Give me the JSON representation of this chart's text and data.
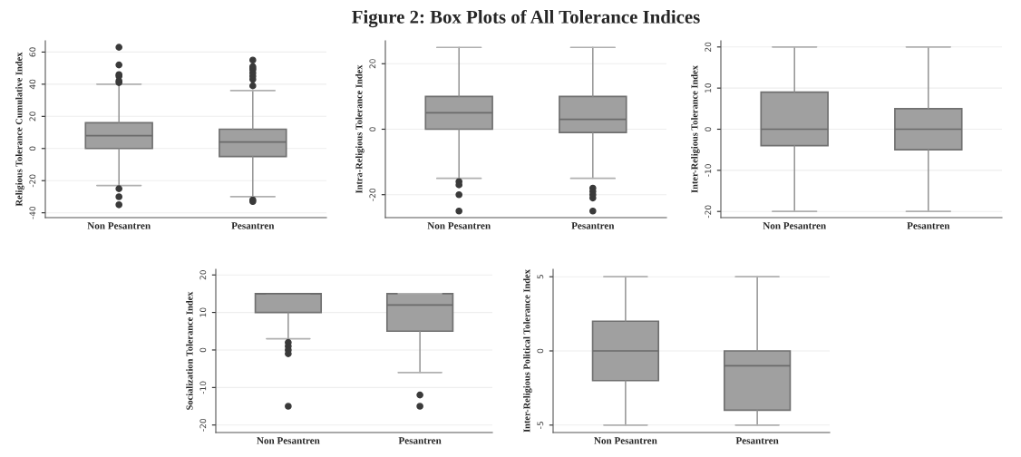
{
  "chart_data": [
    {
      "type": "box",
      "ylabel": "Religious Tolerance Cumulative Index",
      "categories": [
        "Non Pesantren",
        "Pesantren"
      ],
      "ylim": [
        -43,
        67
      ],
      "yticks": [
        -40,
        -20,
        0,
        20,
        40,
        60
      ],
      "grid": "y",
      "color": "#a0a0a0",
      "boxes": [
        {
          "low": -23,
          "q1": 0,
          "median": 8,
          "q3": 16,
          "high": 40,
          "outliers": [
            41,
            42,
            45,
            46,
            52,
            63,
            -25,
            -30,
            -35
          ]
        },
        {
          "low": -30,
          "q1": -5,
          "median": 4,
          "q3": 12,
          "high": 36,
          "outliers": [
            39,
            43,
            45,
            47,
            49,
            50,
            51,
            55,
            -32,
            -33
          ]
        }
      ]
    },
    {
      "type": "box",
      "title": "Figure 2: Box Plots of All Tolerance Indices",
      "ylabel": "Intra-Religious Tolerance Index",
      "categories": [
        "Non Pesantren",
        "Pesantren"
      ],
      "ylim": [
        -27,
        27
      ],
      "yticks": [
        -20,
        0,
        20
      ],
      "grid": "y",
      "color": "#a0a0a0",
      "boxes": [
        {
          "low": -15,
          "q1": 0,
          "median": 5,
          "q3": 10,
          "high": 25,
          "outliers": [
            -16,
            -17,
            -20,
            -25
          ]
        },
        {
          "low": -15,
          "q1": -1,
          "median": 3,
          "q3": 10,
          "high": 25,
          "outliers": [
            -18,
            -19,
            -20,
            -21,
            -25
          ]
        }
      ]
    },
    {
      "type": "box",
      "ylabel": "Inter-Religious Tolerance Index",
      "categories": [
        "Non Pesantren",
        "Pesantren"
      ],
      "ylim": [
        -21.5,
        21.5
      ],
      "yticks": [
        -20,
        -10,
        0,
        10,
        20
      ],
      "grid": "y",
      "color": "#a0a0a0",
      "boxes": [
        {
          "low": -20,
          "q1": -4,
          "median": 0,
          "q3": 9,
          "high": 20
        },
        {
          "low": -20,
          "q1": -5,
          "median": 0,
          "q3": 5,
          "high": 20
        }
      ]
    },
    {
      "type": "box",
      "ylabel": "Socialization Tolerance Index",
      "categories": [
        "Non Pesantren",
        "Pesantren"
      ],
      "ylim": [
        -22,
        21.5
      ],
      "yticks": [
        -20,
        -10,
        0,
        10,
        20
      ],
      "grid": "y",
      "color": "#a0a0a0",
      "boxes": [
        {
          "low": 3,
          "q1": 10,
          "median": 15,
          "q3": 15,
          "high": 15,
          "outliers": [
            2,
            1,
            0,
            -1,
            -15
          ]
        },
        {
          "low": -6,
          "q1": 5,
          "median": 12,
          "q3": 15,
          "high": 15,
          "outliers": [
            -12,
            -15
          ]
        }
      ]
    },
    {
      "type": "box",
      "ylabel": "Inter-Religious Political Tolerance Index",
      "categories": [
        "Non Pesantren",
        "Pesantren"
      ],
      "ylim": [
        -5.5,
        5.5
      ],
      "yticks": [
        -5,
        0,
        5
      ],
      "grid": "y",
      "color": "#a0a0a0",
      "boxes": [
        {
          "low": -5,
          "q1": -2,
          "median": 0,
          "q3": 2,
          "high": 5
        },
        {
          "low": -5,
          "q1": -4,
          "median": -1,
          "q3": 0,
          "high": 5
        }
      ]
    }
  ]
}
